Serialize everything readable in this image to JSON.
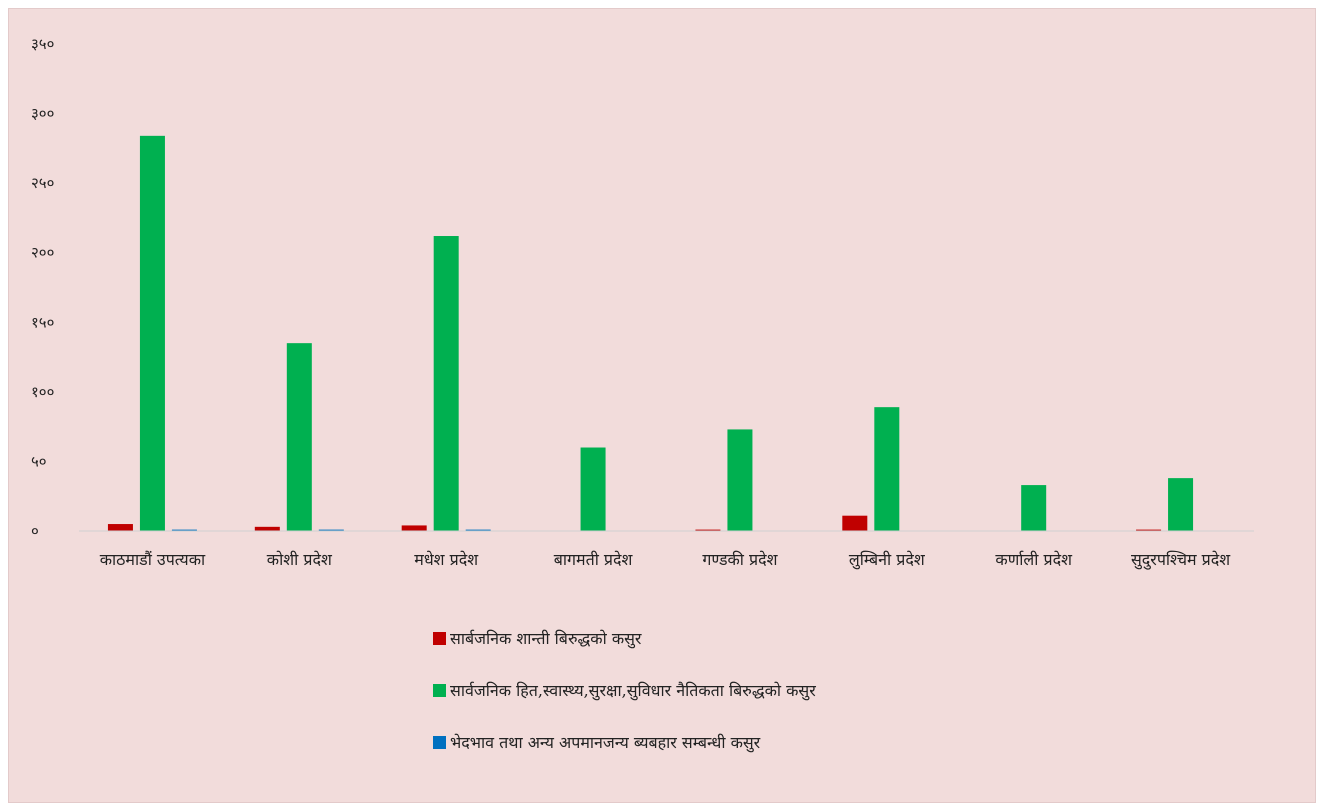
{
  "chart_data": {
    "type": "bar",
    "title": "",
    "xlabel": "",
    "ylabel": "",
    "ylim": [
      0,
      350
    ],
    "yticks": [
      0,
      50,
      100,
      150,
      200,
      250,
      300,
      350
    ],
    "ytick_labels": [
      "०",
      "५०",
      "१००",
      "१५०",
      "२००",
      "२५०",
      "३००",
      "३५०"
    ],
    "grid": false,
    "legend_position": "bottom",
    "categories": [
      "काठमाडौं उपत्यका",
      "कोशी प्रदेश",
      "मधेश प्रदेश",
      "बागमती प्रदेश",
      "गण्डकी प्रदेश",
      "लुम्बिनी प्रदेश",
      "कर्णाली प्रदेश",
      "सुदुरपश्चिम प्रदेश"
    ],
    "series": [
      {
        "name": "सार्बजनिक शान्ती बिरुद्धको कसुर",
        "color": "#c00000",
        "values": [
          5,
          3,
          4,
          0,
          1,
          11,
          0,
          1
        ]
      },
      {
        "name": "सार्वजनिक हित,स्वास्थ्य,सुरक्षा,सुविधार नैतिकता बिरुद्धको कसुर",
        "color": "#00b050",
        "values": [
          284,
          135,
          212,
          60,
          73,
          89,
          33,
          38
        ]
      },
      {
        "name": "भेदभाव तथा अन्य अपमानजन्य ब्यबहार सम्बन्धी कसुर",
        "color": "#0070c0",
        "values": [
          1,
          1,
          1,
          0,
          0,
          0,
          0,
          0
        ]
      }
    ]
  }
}
